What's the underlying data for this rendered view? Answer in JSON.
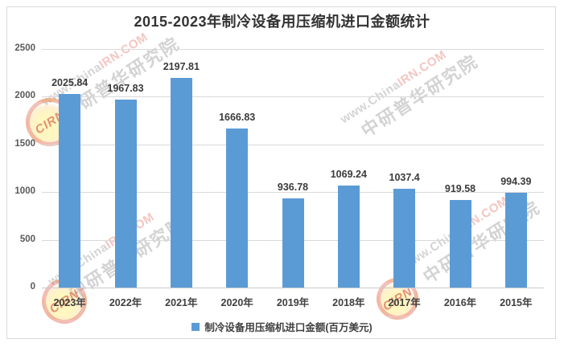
{
  "chart_data": {
    "type": "bar",
    "title": "2015-2023年制冷设备用压缩机进口金额统计",
    "categories": [
      "2023年",
      "2022年",
      "2021年",
      "2020年",
      "2019年",
      "2018年",
      "2017年",
      "2016年",
      "2015年"
    ],
    "values": [
      2025.84,
      1967.83,
      2197.81,
      1666.83,
      936.78,
      1069.24,
      1037.4,
      919.58,
      994.39
    ],
    "value_labels": [
      "2025.84",
      "1967.83",
      "2197.81",
      "1666.83",
      "936.78",
      "1069.24",
      "1037.4",
      "919.58",
      "994.39"
    ],
    "xlabel": "",
    "ylabel": "",
    "ylim": [
      0,
      2500
    ],
    "yticks": [
      0,
      500,
      1000,
      1500,
      2000,
      2500
    ],
    "grid": true,
    "legend_position": "bottom",
    "legend": [
      "制冷设备用压缩机进口金额(百万美元)"
    ],
    "bar_color": "#5b9bd5"
  },
  "legend": {
    "label": "制冷设备用压缩机进口金额(百万美元)",
    "swatch_color": "#5b9bd5"
  },
  "watermark": {
    "url_gray": "www.China",
    "url_red": "IRN.COM",
    "brand": "中研普华研究院",
    "logo_text": "CIRN"
  },
  "colors": {
    "bar": "#5b9bd5",
    "gridline": "#d9d9d9",
    "title_text": "#333333",
    "axis_text": "#595959",
    "data_label_text": "#3b3b3b"
  }
}
